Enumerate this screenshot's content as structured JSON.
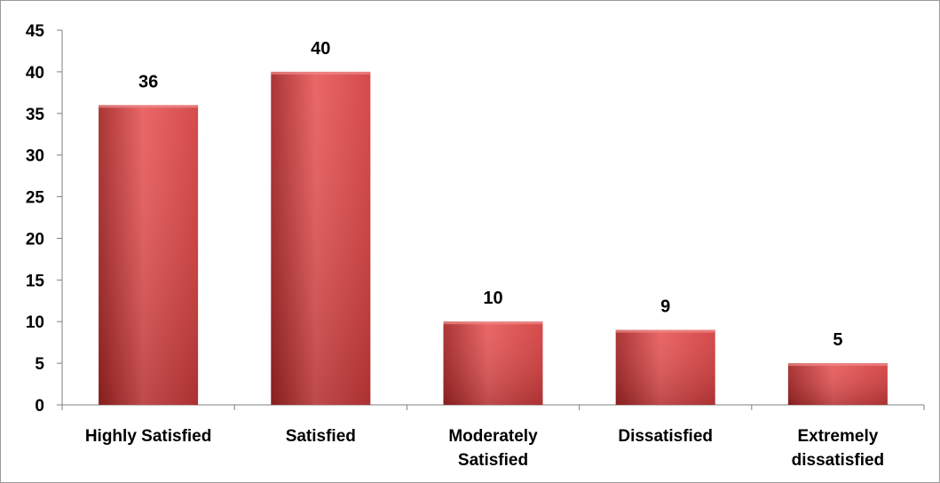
{
  "chart_data": {
    "type": "bar",
    "categories": [
      "Highly Satisfied",
      "Satisfied",
      "Moderately Satisfied",
      "Dissatisfied",
      "Extremely dissatisfied"
    ],
    "category_lines": [
      [
        "Highly Satisfied"
      ],
      [
        "Satisfied"
      ],
      [
        "Moderately",
        "Satisfied"
      ],
      [
        "Dissatisfied"
      ],
      [
        "Extremely",
        "dissatisfied"
      ]
    ],
    "values": [
      36,
      40,
      10,
      9,
      5
    ],
    "data_labels": [
      "36",
      "40",
      "10",
      "9",
      "5"
    ],
    "yticks": [
      0,
      5,
      10,
      15,
      20,
      25,
      30,
      35,
      40,
      45
    ],
    "ylim": [
      0,
      45
    ],
    "title": "",
    "xlabel": "",
    "ylabel": "",
    "grid": false,
    "legend": "none",
    "colors": {
      "bar_light": "#e85a5a",
      "bar_mid": "#d13b3b",
      "bar_dark": "#a32424",
      "axis": "#7f7f7f"
    }
  }
}
